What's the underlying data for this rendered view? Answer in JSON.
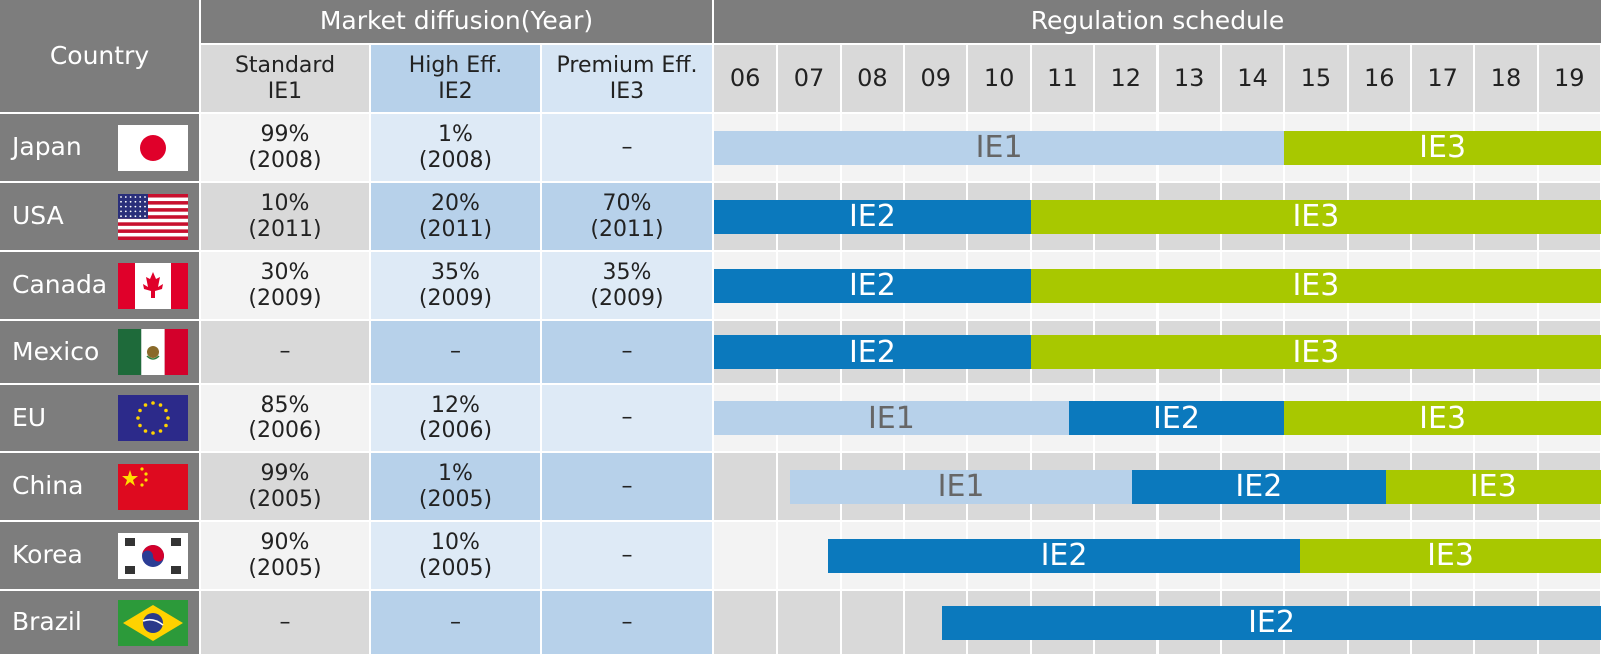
{
  "header": {
    "country": "Country",
    "market_diffusion": "Market diffusion(Year)",
    "regulation_schedule": "Regulation schedule",
    "standard": [
      "Standard",
      "IE1"
    ],
    "high_eff": [
      "High Eff.",
      "IE2"
    ],
    "premium_eff": [
      "Premium Eff.",
      "IE3"
    ]
  },
  "years": [
    "06",
    "07",
    "08",
    "09",
    "10",
    "11",
    "12",
    "13",
    "14",
    "15",
    "16",
    "17",
    "18",
    "19"
  ],
  "colors": {
    "IE1": "#b7d1ea",
    "IE2": "#0b79bd",
    "IE3": "#a8c800"
  },
  "chart_data": {
    "type": "table",
    "rows": [
      {
        "country": "Japan",
        "ie1": [
          "99%",
          "(2008)"
        ],
        "ie2": [
          "1%",
          "(2008)"
        ],
        "ie3": [
          "–"
        ],
        "schedule": [
          {
            "label": "IE1",
            "start": 2006,
            "end": 2015
          },
          {
            "label": "IE3",
            "start": 2015,
            "end": 2020
          }
        ]
      },
      {
        "country": "USA",
        "ie1": [
          "10%",
          "(2011)"
        ],
        "ie2": [
          "20%",
          "(2011)"
        ],
        "ie3": [
          "70%",
          "(2011)"
        ],
        "schedule": [
          {
            "label": "IE2",
            "start": 2006,
            "end": 2011
          },
          {
            "label": "IE3",
            "start": 2011,
            "end": 2020
          }
        ]
      },
      {
        "country": "Canada",
        "ie1": [
          "30%",
          "(2009)"
        ],
        "ie2": [
          "35%",
          "(2009)"
        ],
        "ie3": [
          "35%",
          "(2009)"
        ],
        "schedule": [
          {
            "label": "IE2",
            "start": 2006,
            "end": 2011
          },
          {
            "label": "IE3",
            "start": 2011,
            "end": 2020
          }
        ]
      },
      {
        "country": "Mexico",
        "ie1": [
          "–"
        ],
        "ie2": [
          "–"
        ],
        "ie3": [
          "–"
        ],
        "schedule": [
          {
            "label": "IE2",
            "start": 2006,
            "end": 2011
          },
          {
            "label": "IE3",
            "start": 2011,
            "end": 2020
          }
        ]
      },
      {
        "country": "EU",
        "ie1": [
          "85%",
          "(2006)"
        ],
        "ie2": [
          "12%",
          "(2006)"
        ],
        "ie3": [
          "–"
        ],
        "schedule": [
          {
            "label": "IE1",
            "start": 2006,
            "end": 2011.6
          },
          {
            "label": "IE2",
            "start": 2011.6,
            "end": 2015
          },
          {
            "label": "IE3",
            "start": 2015,
            "end": 2020
          }
        ]
      },
      {
        "country": "China",
        "ie1": [
          "99%",
          "(2005)"
        ],
        "ie2": [
          "1%",
          "(2005)"
        ],
        "ie3": [
          "–"
        ],
        "schedule": [
          {
            "label": "IE1",
            "start": 2007.2,
            "end": 2012.6
          },
          {
            "label": "IE2",
            "start": 2012.6,
            "end": 2016.6
          },
          {
            "label": "IE3",
            "start": 2016.6,
            "end": 2020
          }
        ]
      },
      {
        "country": "Korea",
        "ie1": [
          "90%",
          "(2005)"
        ],
        "ie2": [
          "10%",
          "(2005)"
        ],
        "ie3": [
          "–"
        ],
        "schedule": [
          {
            "label": "IE2",
            "start": 2007.8,
            "end": 2015.25
          },
          {
            "label": "IE3",
            "start": 2015.25,
            "end": 2020
          }
        ]
      },
      {
        "country": "Brazil",
        "ie1": [
          "–"
        ],
        "ie2": [
          "–"
        ],
        "ie3": [
          "–"
        ],
        "schedule": [
          {
            "label": "IE2",
            "start": 2009.6,
            "end": 2020
          }
        ]
      }
    ]
  }
}
